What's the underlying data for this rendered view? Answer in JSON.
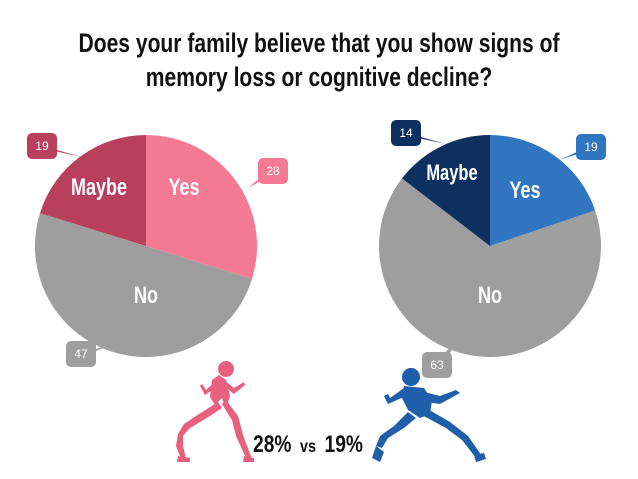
{
  "title_lines": [
    "Does your family believe that you show signs of",
    "memory loss or cognitive decline?"
  ],
  "chart_data": [
    {
      "type": "pie",
      "title": "",
      "categories": [
        "Yes",
        "No",
        "Maybe"
      ],
      "values": [
        28,
        47,
        19
      ],
      "colors": [
        "#f47a93",
        "#9e9e9e",
        "#b8405c"
      ]
    },
    {
      "type": "pie",
      "title": "",
      "categories": [
        "Yes",
        "No",
        "Maybe"
      ],
      "values": [
        19,
        63,
        14
      ],
      "colors": [
        "#2f75c0",
        "#9e9e9e",
        "#0e3060"
      ]
    }
  ],
  "comparison": {
    "left_value": "28%",
    "vs": "vs",
    "right_value": "19%",
    "left_color": "#e8607e",
    "right_color": "#1f5ea8"
  },
  "icons": [
    "female-runner-icon",
    "male-runner-icon"
  ]
}
